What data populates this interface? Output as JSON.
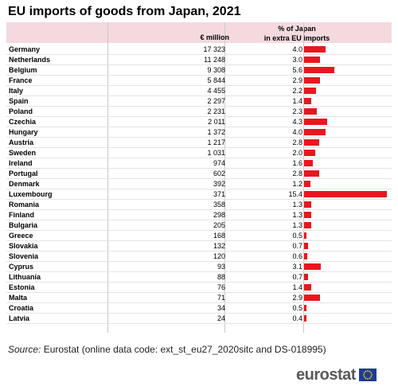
{
  "title": "EU imports of goods from Japan, 2021",
  "header": {
    "million_label": "€ million",
    "pct_label_line1": "% of Japan",
    "pct_label_line2": "in extra EU imports"
  },
  "source": {
    "prefix": "Source:",
    "text": " Eurostat (online data code: ext_st_eu27_2020sitc and DS-018995)"
  },
  "logo": {
    "wordmark": "eurostat",
    "icon": "eu-flag-icon"
  },
  "colors": {
    "bar": "#e8171f",
    "header_bg": "#f4d9de"
  },
  "chart_data": {
    "type": "table",
    "title": "EU imports of goods from Japan, 2021",
    "columns": [
      "€ million",
      "% of Japan in extra EU imports"
    ],
    "rows": [
      {
        "country": "Germany",
        "million": "17 323",
        "pct": "4.0",
        "pct_value": 4.0
      },
      {
        "country": "Netherlands",
        "million": "11 248",
        "pct": "3.0",
        "pct_value": 3.0
      },
      {
        "country": "Belgium",
        "million": "9 308",
        "pct": "5.6",
        "pct_value": 5.6
      },
      {
        "country": "France",
        "million": "5 844",
        "pct": "2.9",
        "pct_value": 2.9
      },
      {
        "country": "Italy",
        "million": "4 455",
        "pct": "2.2",
        "pct_value": 2.2
      },
      {
        "country": "Spain",
        "million": "2 297",
        "pct": "1.4",
        "pct_value": 1.4
      },
      {
        "country": "Poland",
        "million": "2 231",
        "pct": "2.3",
        "pct_value": 2.3
      },
      {
        "country": "Czechia",
        "million": "2 011",
        "pct": "4.3",
        "pct_value": 4.3
      },
      {
        "country": "Hungary",
        "million": "1 372",
        "pct": "4.0",
        "pct_value": 4.0
      },
      {
        "country": "Austria",
        "million": "1 217",
        "pct": "2.8",
        "pct_value": 2.8
      },
      {
        "country": "Sweden",
        "million": "1 031",
        "pct": "2.0",
        "pct_value": 2.0
      },
      {
        "country": "Ireland",
        "million": "974",
        "pct": "1.6",
        "pct_value": 1.6
      },
      {
        "country": "Portugal",
        "million": "602",
        "pct": "2.8",
        "pct_value": 2.8
      },
      {
        "country": "Denmark",
        "million": "392",
        "pct": "1.2",
        "pct_value": 1.2
      },
      {
        "country": "Luxembourg",
        "million": "371",
        "pct": "15.4",
        "pct_value": 15.4
      },
      {
        "country": "Romania",
        "million": "358",
        "pct": "1.3",
        "pct_value": 1.3
      },
      {
        "country": "Finland",
        "million": "298",
        "pct": "1.3",
        "pct_value": 1.3
      },
      {
        "country": "Bulgaria",
        "million": "205",
        "pct": "1.3",
        "pct_value": 1.3
      },
      {
        "country": "Greece",
        "million": "168",
        "pct": "0.5",
        "pct_value": 0.5
      },
      {
        "country": "Slovakia",
        "million": "132",
        "pct": "0.7",
        "pct_value": 0.7
      },
      {
        "country": "Slovenia",
        "million": "120",
        "pct": "0.6",
        "pct_value": 0.6
      },
      {
        "country": "Cyprus",
        "million": "93",
        "pct": "3.1",
        "pct_value": 3.1
      },
      {
        "country": "Lithuania",
        "million": "88",
        "pct": "0.7",
        "pct_value": 0.7
      },
      {
        "country": "Estonia",
        "million": "76",
        "pct": "1.4",
        "pct_value": 1.4
      },
      {
        "country": "Malta",
        "million": "71",
        "pct": "2.9",
        "pct_value": 2.9
      },
      {
        "country": "Croatia",
        "million": "34",
        "pct": "0.5",
        "pct_value": 0.5
      },
      {
        "country": "Latvia",
        "million": "24",
        "pct": "0.4",
        "pct_value": 0.4
      }
    ]
  }
}
